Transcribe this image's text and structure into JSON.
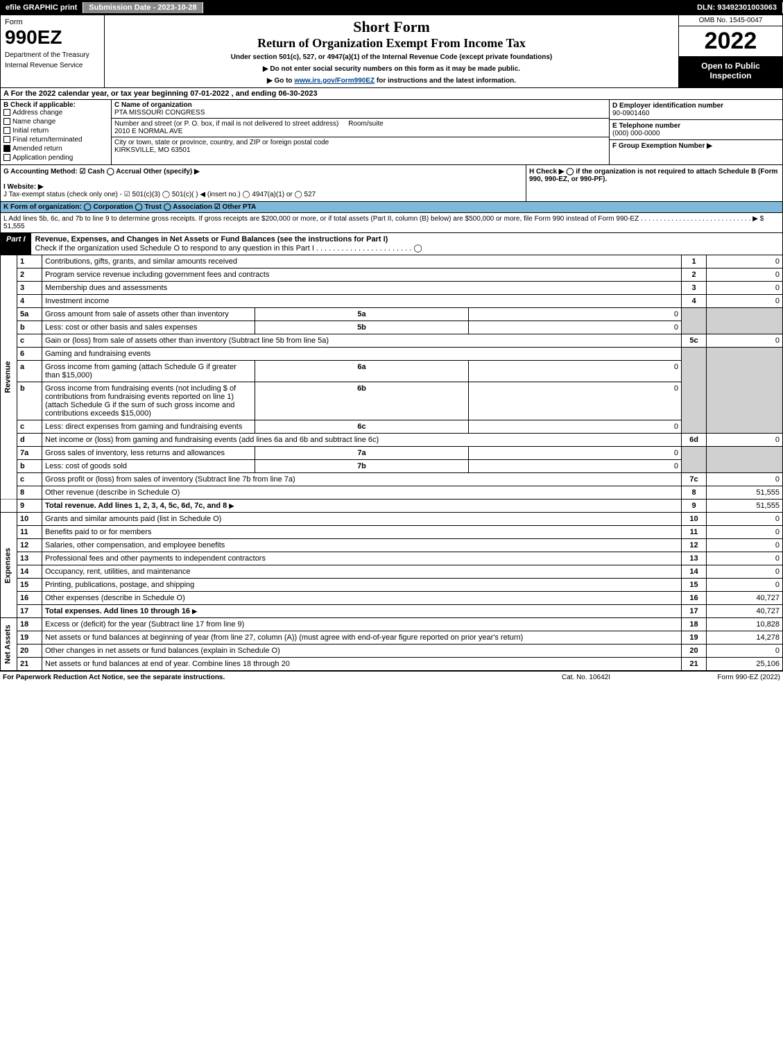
{
  "topbar": {
    "efile": "efile GRAPHIC print",
    "submission": "Submission Date - 2023-10-28",
    "dln": "DLN: 93492301003063"
  },
  "header": {
    "form_label": "Form",
    "form_number": "990EZ",
    "dept1": "Department of the Treasury",
    "dept2": "Internal Revenue Service",
    "title1": "Short Form",
    "title2": "Return of Organization Exempt From Income Tax",
    "subtitle": "Under section 501(c), 527, or 4947(a)(1) of the Internal Revenue Code (except private foundations)",
    "note1": "▶ Do not enter social security numbers on this form as it may be made public.",
    "note2_pre": "▶ Go to ",
    "note2_link": "www.irs.gov/Form990EZ",
    "note2_post": " for instructions and the latest information.",
    "omb": "OMB No. 1545-0047",
    "year": "2022",
    "inspection": "Open to Public Inspection"
  },
  "sectionA": "A  For the 2022 calendar year, or tax year beginning 07-01-2022 , and ending 06-30-2023",
  "colB": {
    "label": "B  Check if applicable:",
    "items": [
      "Address change",
      "Name change",
      "Initial return",
      "Final return/terminated",
      "Amended return",
      "Application pending"
    ],
    "checked_index": 4
  },
  "colC": {
    "name_label": "C Name of organization",
    "name": "PTA MISSOURI CONGRESS",
    "street_label": "Number and street (or P. O. box, if mail is not delivered to street address)",
    "room_label": "Room/suite",
    "street": "2010 E NORMAL AVE",
    "city_label": "City or town, state or province, country, and ZIP or foreign postal code",
    "city": "KIRKSVILLE, MO  63501"
  },
  "colD": {
    "ein_label": "D Employer identification number",
    "ein": "90-0901460",
    "tel_label": "E Telephone number",
    "tel": "(000) 000-0000",
    "group_label": "F Group Exemption Number  ▶"
  },
  "row3": {
    "g": "G Accounting Method:   ☑ Cash   ◯ Accrual   Other (specify) ▶",
    "i": "I Website: ▶",
    "j_pre": "J Tax-exempt status (check only one) - ☑ 501(c)(3) ◯ 501(c)(  ) ◀ (insert no.) ◯ 4947(a)(1) or ◯ 527",
    "h": "H  Check ▶ ◯ if the organization is not required to attach Schedule B (Form 990, 990-EZ, or 990-PF)."
  },
  "k_line": "K Form of organization:   ◯ Corporation   ◯ Trust   ◯ Association   ☑ Other PTA",
  "l_line": "L Add lines 5b, 6c, and 7b to line 9 to determine gross receipts. If gross receipts are $200,000 or more, or if total assets (Part II, column (B) below) are $500,000 or more, file Form 990 instead of Form 990-EZ . . . . . . . . . . . . . . . . . . . . . . . . . . . . . ▶ $ 51,555",
  "part1": {
    "label": "Part I",
    "title": "Revenue, Expenses, and Changes in Net Assets or Fund Balances (see the instructions for Part I)",
    "check": "Check if the organization used Schedule O to respond to any question in this Part I . . . . . . . . . . . . . . . . . . . . . . . ◯"
  },
  "sidebars": {
    "revenue": "Revenue",
    "expenses": "Expenses",
    "netassets": "Net Assets"
  },
  "rows": {
    "r1": {
      "no": "1",
      "desc": "Contributions, gifts, grants, and similar amounts received",
      "ref": "1",
      "val": "0"
    },
    "r2": {
      "no": "2",
      "desc": "Program service revenue including government fees and contracts",
      "ref": "2",
      "val": "0"
    },
    "r3": {
      "no": "3",
      "desc": "Membership dues and assessments",
      "ref": "3",
      "val": "0"
    },
    "r4": {
      "no": "4",
      "desc": "Investment income",
      "ref": "4",
      "val": "0"
    },
    "r5a": {
      "no": "5a",
      "desc": "Gross amount from sale of assets other than inventory",
      "sublab": "5a",
      "subval": "0"
    },
    "r5b": {
      "no": "b",
      "desc": "Less: cost or other basis and sales expenses",
      "sublab": "5b",
      "subval": "0"
    },
    "r5c": {
      "no": "c",
      "desc": "Gain or (loss) from sale of assets other than inventory (Subtract line 5b from line 5a)",
      "ref": "5c",
      "val": "0"
    },
    "r6": {
      "no": "6",
      "desc": "Gaming and fundraising events"
    },
    "r6a": {
      "no": "a",
      "desc": "Gross income from gaming (attach Schedule G if greater than $15,000)",
      "sublab": "6a",
      "subval": "0"
    },
    "r6b": {
      "no": "b",
      "desc": "Gross income from fundraising events (not including $                 of contributions from fundraising events reported on line 1) (attach Schedule G if the sum of such gross income and contributions exceeds $15,000)",
      "sublab": "6b",
      "subval": "0"
    },
    "r6c": {
      "no": "c",
      "desc": "Less: direct expenses from gaming and fundraising events",
      "sublab": "6c",
      "subval": "0"
    },
    "r6d": {
      "no": "d",
      "desc": "Net income or (loss) from gaming and fundraising events (add lines 6a and 6b and subtract line 6c)",
      "ref": "6d",
      "val": "0"
    },
    "r7a": {
      "no": "7a",
      "desc": "Gross sales of inventory, less returns and allowances",
      "sublab": "7a",
      "subval": "0"
    },
    "r7b": {
      "no": "b",
      "desc": "Less: cost of goods sold",
      "sublab": "7b",
      "subval": "0"
    },
    "r7c": {
      "no": "c",
      "desc": "Gross profit or (loss) from sales of inventory (Subtract line 7b from line 7a)",
      "ref": "7c",
      "val": "0"
    },
    "r8": {
      "no": "8",
      "desc": "Other revenue (describe in Schedule O)",
      "ref": "8",
      "val": "51,555"
    },
    "r9": {
      "no": "9",
      "desc": "Total revenue. Add lines 1, 2, 3, 4, 5c, 6d, 7c, and 8",
      "ref": "9",
      "val": "51,555",
      "bold": true
    },
    "r10": {
      "no": "10",
      "desc": "Grants and similar amounts paid (list in Schedule O)",
      "ref": "10",
      "val": "0"
    },
    "r11": {
      "no": "11",
      "desc": "Benefits paid to or for members",
      "ref": "11",
      "val": "0"
    },
    "r12": {
      "no": "12",
      "desc": "Salaries, other compensation, and employee benefits",
      "ref": "12",
      "val": "0"
    },
    "r13": {
      "no": "13",
      "desc": "Professional fees and other payments to independent contractors",
      "ref": "13",
      "val": "0"
    },
    "r14": {
      "no": "14",
      "desc": "Occupancy, rent, utilities, and maintenance",
      "ref": "14",
      "val": "0"
    },
    "r15": {
      "no": "15",
      "desc": "Printing, publications, postage, and shipping",
      "ref": "15",
      "val": "0"
    },
    "r16": {
      "no": "16",
      "desc": "Other expenses (describe in Schedule O)",
      "ref": "16",
      "val": "40,727"
    },
    "r17": {
      "no": "17",
      "desc": "Total expenses. Add lines 10 through 16",
      "ref": "17",
      "val": "40,727",
      "bold": true
    },
    "r18": {
      "no": "18",
      "desc": "Excess or (deficit) for the year (Subtract line 17 from line 9)",
      "ref": "18",
      "val": "10,828"
    },
    "r19": {
      "no": "19",
      "desc": "Net assets or fund balances at beginning of year (from line 27, column (A)) (must agree with end-of-year figure reported on prior year's return)",
      "ref": "19",
      "val": "14,278"
    },
    "r20": {
      "no": "20",
      "desc": "Other changes in net assets or fund balances (explain in Schedule O)",
      "ref": "20",
      "val": "0"
    },
    "r21": {
      "no": "21",
      "desc": "Net assets or fund balances at end of year. Combine lines 18 through 20",
      "ref": "21",
      "val": "25,106"
    }
  },
  "footer": {
    "left": "For Paperwork Reduction Act Notice, see the separate instructions.",
    "center": "Cat. No. 10642I",
    "right": "Form 990-EZ (2022)"
  },
  "colors": {
    "topbar_bg": "#000000",
    "submission_bg": "#888888",
    "k_bg": "#7fb8d8",
    "grey_cell": "#d0d0d0",
    "link": "#004488"
  }
}
